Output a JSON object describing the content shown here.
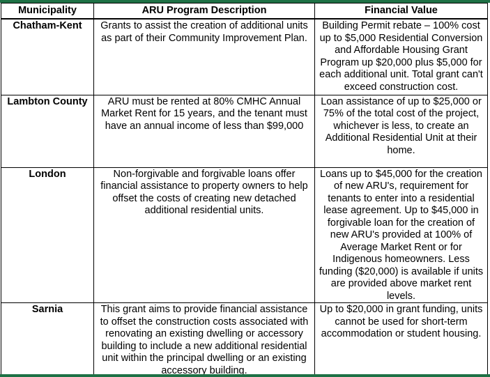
{
  "colors": {
    "accent_green": "#1E7145",
    "table_border": "#000000",
    "text": "#000000",
    "background": "#FFFFFF"
  },
  "table": {
    "headers": [
      "Municipality",
      "ARU Program Description",
      "Financial Value"
    ],
    "rows": [
      {
        "municipality": "Chatham-Kent",
        "description": "Grants to assist the creation of additional units as part of their Community Improvement Plan.",
        "financial": "Building Permit rebate – 100% cost up to $5,000 Residential Conversion and Affordable Housing Grant Program up $20,000 plus $5,000 for each additional unit. Total grant can't exceed construction cost."
      },
      {
        "municipality": "Lambton County",
        "description": "ARU must be rented at 80% CMHC Annual Market Rent for 15 years, and the tenant must have an annual income of less than $99,000",
        "financial": "Loan assistance of up to $25,000 or 75% of the total cost of the project, whichever is less, to create an Additional Residential Unit at their home."
      },
      {
        "municipality": "London",
        "description": "Non-forgivable and forgivable loans offer financial assistance to property owners to help offset the costs of creating new detached additional residential units.",
        "financial": "Loans up to $45,000 for the creation of new ARU's, requirement for tenants to enter into a residential lease agreement. Up to $45,000 in forgivable loan for the creation of new ARU's provided at 100% of Average Market Rent or for Indigenous homeowners. Less funding ($20,000) is available if units are provided above market rent levels."
      },
      {
        "municipality": "Sarnia",
        "description": "This grant aims to provide financial assistance to offset the construction costs associated with renovating an existing dwelling or accessory building to include a new additional residential unit within the principal dwelling or an existing accessory building.",
        "financial": "Up to $20,000 in grant funding, units cannot be used for short-term accommodation or student housing."
      }
    ]
  }
}
